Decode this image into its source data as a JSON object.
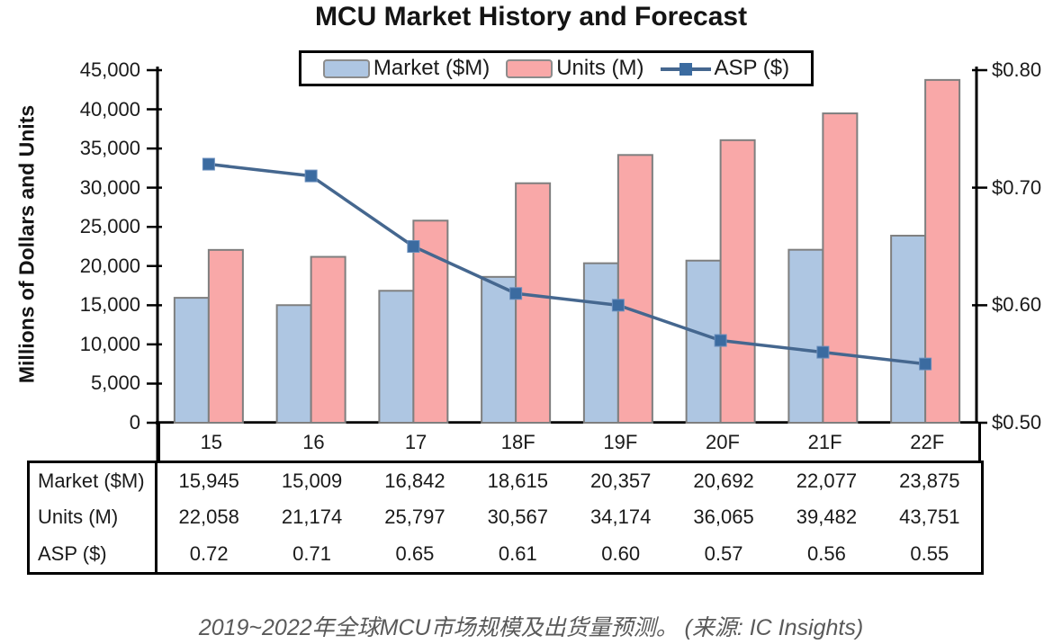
{
  "title": "MCU Market History and Forecast",
  "y_axis_label": "Millions of Dollars and Units",
  "caption": "2019~2022年全球MCU市场规模及出货量预测。 (来源: IC Insights)",
  "colors": {
    "market_bar_fill": "#aec6e2",
    "units_bar_fill": "#f9a8a8",
    "bar_border": "#7f7f7f",
    "asp_line": "#45678f",
    "asp_marker": "#3b6ba0",
    "axis": "#000000",
    "caption_text": "#595959"
  },
  "chart_data": {
    "type": "bar+line combo",
    "title": "MCU Market History and Forecast",
    "categories": [
      "15",
      "16",
      "17",
      "18F",
      "19F",
      "20F",
      "21F",
      "22F"
    ],
    "series": [
      {
        "name": "Market ($M)",
        "type": "bar",
        "axis": "left",
        "values": [
          15945,
          15009,
          16842,
          18615,
          20357,
          20692,
          22077,
          23875
        ]
      },
      {
        "name": "Units (M)",
        "type": "bar",
        "axis": "left",
        "values": [
          22058,
          21174,
          25797,
          30567,
          34174,
          36065,
          39482,
          43751
        ]
      },
      {
        "name": "ASP ($)",
        "type": "line",
        "axis": "right",
        "values": [
          0.72,
          0.71,
          0.65,
          0.61,
          0.6,
          0.57,
          0.56,
          0.55
        ]
      }
    ],
    "left_axis": {
      "label": "Millions of Dollars and Units",
      "min": 0,
      "max": 45000,
      "step": 5000,
      "tick_labels": [
        "45,000",
        "40,000",
        "35,000",
        "30,000",
        "25,000",
        "20,000",
        "15,000",
        "10,000",
        "5,000",
        "0"
      ]
    },
    "right_axis": {
      "min": 0.5,
      "max": 0.8,
      "step": 0.1,
      "tick_labels": [
        "$0.80",
        "$0.70",
        "$0.60",
        "$0.50"
      ]
    },
    "legend_position": "top",
    "grid": "off"
  },
  "table": {
    "row_headers": [
      "Market ($M)",
      "Units (M)",
      "ASP ($)"
    ],
    "columns": [
      "15",
      "16",
      "17",
      "18F",
      "19F",
      "20F",
      "21F",
      "22F"
    ],
    "rows": [
      [
        "15,945",
        "15,009",
        "16,842",
        "18,615",
        "20,357",
        "20,692",
        "22,077",
        "23,875"
      ],
      [
        "22,058",
        "21,174",
        "25,797",
        "30,567",
        "34,174",
        "36,065",
        "39,482",
        "43,751"
      ],
      [
        "0.72",
        "0.71",
        "0.65",
        "0.61",
        "0.60",
        "0.57",
        "0.56",
        "0.55"
      ]
    ]
  }
}
